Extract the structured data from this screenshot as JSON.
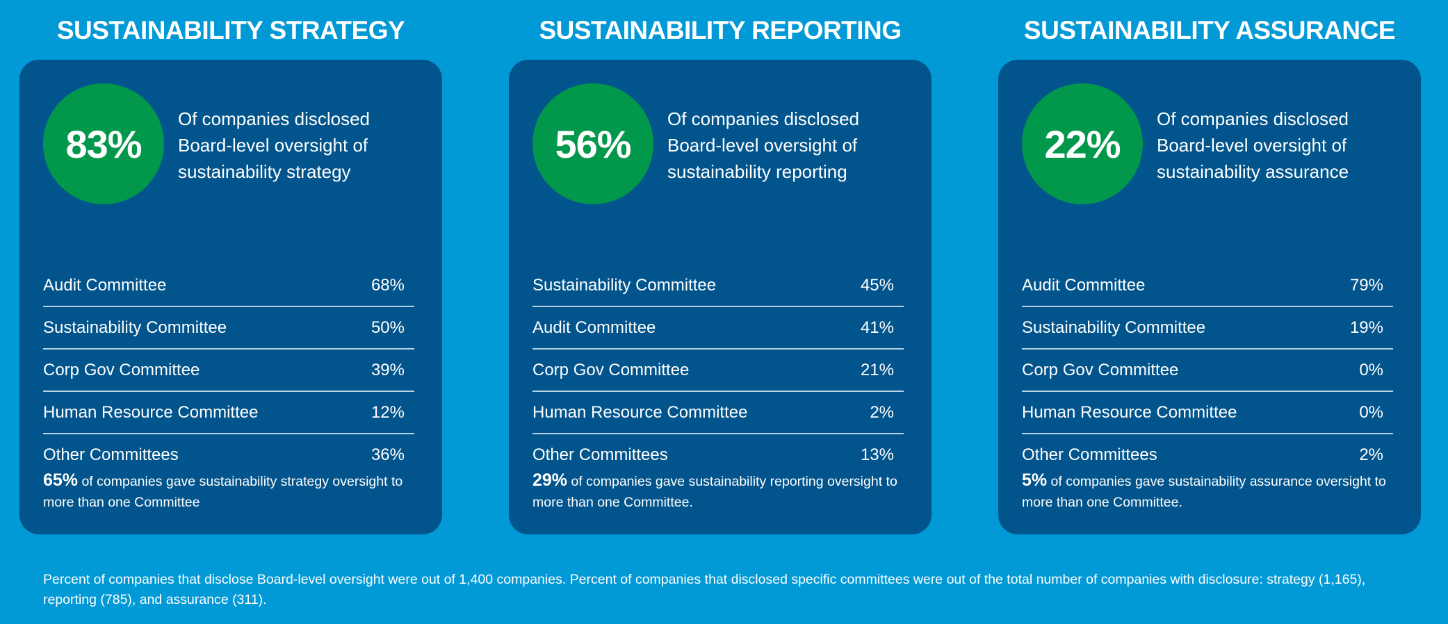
{
  "colors": {
    "background": "#0199d6",
    "card": "#02548c",
    "hero_circle": "#02984b",
    "text": "#ffffff",
    "divider": "#b9d3e6"
  },
  "sections": [
    {
      "title": "SUSTAINABILITY STRATEGY",
      "hero_value": "83%",
      "hero_text": "Of companies disclosed Board-level oversight of sustainability strategy",
      "committees": [
        {
          "name": "Audit Committee",
          "value": "68%"
        },
        {
          "name": "Sustainability Committee",
          "value": "50%"
        },
        {
          "name": "Corp Gov Committee",
          "value": "39%"
        },
        {
          "name": "Human Resource Committee",
          "value": "12%"
        },
        {
          "name": "Other Committees",
          "value": "36%"
        }
      ],
      "summary_value": "65%",
      "summary_text": " of companies gave sustainability strategy oversight to more than one Committee"
    },
    {
      "title": "SUSTAINABILITY REPORTING",
      "hero_value": "56%",
      "hero_text": "Of companies disclosed Board-level oversight of sustainability reporting",
      "committees": [
        {
          "name": "Sustainability Committee",
          "value": "45%"
        },
        {
          "name": "Audit Committee",
          "value": "41%"
        },
        {
          "name": "Corp Gov Committee",
          "value": "21%"
        },
        {
          "name": "Human Resource Committee",
          "value": "2%"
        },
        {
          "name": "Other Committees",
          "value": "13%"
        }
      ],
      "summary_value": "29%",
      "summary_text": " of companies gave sustainability reporting oversight to more than one Committee."
    },
    {
      "title": "SUSTAINABILITY ASSURANCE",
      "hero_value": "22%",
      "hero_text": "Of companies disclosed Board-level oversight of sustainability assurance",
      "committees": [
        {
          "name": "Audit Committee",
          "value": "79%"
        },
        {
          "name": "Sustainability Committee",
          "value": "19%"
        },
        {
          "name": "Corp Gov Committee",
          "value": "0%"
        },
        {
          "name": "Human Resource Committee",
          "value": "0%"
        },
        {
          "name": "Other Committees",
          "value": "2%"
        }
      ],
      "summary_value": "5%",
      "summary_text": " of companies gave sustainability assurance oversight to more than one Committee."
    }
  ],
  "footnote": "Percent of companies that disclose Board-level oversight were out of 1,400 companies. Percent of companies that disclosed specific committees were out of the total number of companies with disclosure: strategy (1,165), reporting (785), and assurance (311)."
}
